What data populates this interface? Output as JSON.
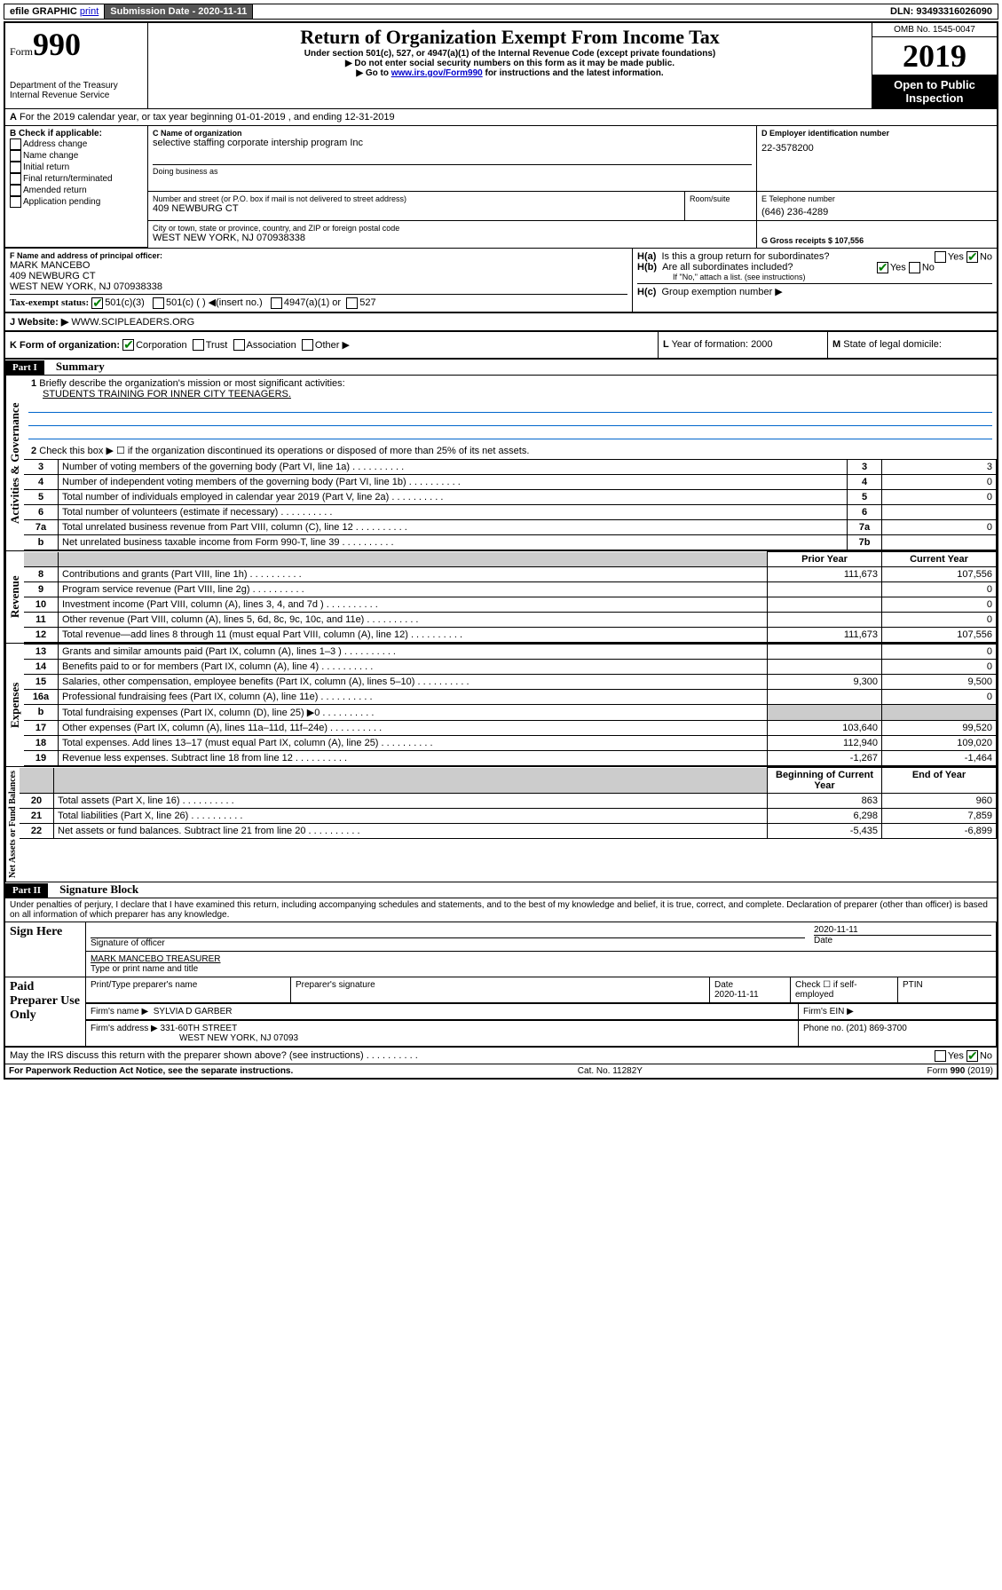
{
  "topbar": {
    "efile": "efile GRAPHIC",
    "print": "print",
    "submission_label": "Submission Date - 2020-11-11",
    "dln": "DLN: 93493316026090"
  },
  "header": {
    "form_label": "Form",
    "form_number": "990",
    "dept": "Department of the Treasury\nInternal Revenue Service",
    "title": "Return of Organization Exempt From Income Tax",
    "subtitle1": "Under section 501(c), 527, or 4947(a)(1) of the Internal Revenue Code (except private foundations)",
    "subtitle2": "▶ Do not enter social security numbers on this form as it may be made public.",
    "subtitle3_pre": "▶ Go to ",
    "subtitle3_link": "www.irs.gov/Form990",
    "subtitle3_post": " for instructions and the latest information.",
    "omb": "OMB No. 1545-0047",
    "year": "2019",
    "open_public": "Open to Public Inspection"
  },
  "sectionA": {
    "a_line": "For the 2019 calendar year, or tax year beginning 01-01-2019   , and ending 12-31-2019",
    "b_label": "B Check if applicable:",
    "b_items": [
      "Address change",
      "Name change",
      "Initial return",
      "Final return/terminated",
      "Amended return",
      "Application pending"
    ],
    "c_label": "C Name of organization",
    "c_name": "selective staffing corporate intership program Inc",
    "dba_label": "Doing business as",
    "addr_label": "Number and street (or P.O. box if mail is not delivered to street address)",
    "room_label": "Room/suite",
    "addr": "409 NEWBURG CT",
    "city_label": "City or town, state or province, country, and ZIP or foreign postal code",
    "city": "WEST NEW YORK, NJ  070938338",
    "d_label": "D Employer identification number",
    "d_ein": "22-3578200",
    "e_label": "E Telephone number",
    "e_phone": "(646) 236-4289",
    "g_label": "G Gross receipts $ 107,556",
    "f_label": "F Name and address of principal officer:",
    "f_name": "MARK MANCEBO",
    "f_addr1": "409 NEWBURG CT",
    "f_addr2": "WEST NEW YORK, NJ  070938338",
    "ha_label": "H(a)  Is this a group return for subordinates?",
    "hb_label": "H(b)  Are all subordinates included?",
    "hb_note": "If \"No,\" attach a list. (see instructions)",
    "hc_label": "H(c)  Group exemption number ▶",
    "yes": "Yes",
    "no": "No",
    "tax_exempt_label": "Tax-exempt status:",
    "te_501c3": "501(c)(3)",
    "te_501c": "501(c) (  ) ◀(insert no.)",
    "te_4947": "4947(a)(1) or",
    "te_527": "527",
    "website_label": "J    Website: ▶",
    "website": "WWW.SCIPLEADERS.ORG",
    "k_label": "K Form of organization:",
    "k_corp": "Corporation",
    "k_trust": "Trust",
    "k_assoc": "Association",
    "k_other": "Other ▶",
    "l_label": "L Year of formation: 2000",
    "m_label": "M State of legal domicile:"
  },
  "part1": {
    "header": "Part I",
    "title": "Summary",
    "q1": "Briefly describe the organization's mission or most significant activities:",
    "q1_ans": "STUDENTS TRAINING FOR INNER CITY TEENAGERS.",
    "q2": "Check this box ▶ ☐  if the organization discontinued its operations or disposed of more than 25% of its net assets.",
    "side_gov": "Activities & Governance",
    "side_rev": "Revenue",
    "side_exp": "Expenses",
    "side_net": "Net Assets or Fund Balances",
    "rows_gov": [
      {
        "num": "3",
        "label": "Number of voting members of the governing body (Part VI, line 1a)",
        "box": "3",
        "val": "3"
      },
      {
        "num": "4",
        "label": "Number of independent voting members of the governing body (Part VI, line 1b)",
        "box": "4",
        "val": "0"
      },
      {
        "num": "5",
        "label": "Total number of individuals employed in calendar year 2019 (Part V, line 2a)",
        "box": "5",
        "val": "0"
      },
      {
        "num": "6",
        "label": "Total number of volunteers (estimate if necessary)",
        "box": "6",
        "val": ""
      },
      {
        "num": "7a",
        "label": "Total unrelated business revenue from Part VIII, column (C), line 12",
        "box": "7a",
        "val": "0"
      },
      {
        "num": "b",
        "label": "Net unrelated business taxable income from Form 990-T, line 39",
        "box": "7b",
        "val": ""
      }
    ],
    "col_prior": "Prior Year",
    "col_current": "Current Year",
    "rows_rev": [
      {
        "num": "8",
        "label": "Contributions and grants (Part VIII, line 1h)",
        "prior": "111,673",
        "cur": "107,556"
      },
      {
        "num": "9",
        "label": "Program service revenue (Part VIII, line 2g)",
        "prior": "",
        "cur": "0"
      },
      {
        "num": "10",
        "label": "Investment income (Part VIII, column (A), lines 3, 4, and 7d )",
        "prior": "",
        "cur": "0"
      },
      {
        "num": "11",
        "label": "Other revenue (Part VIII, column (A), lines 5, 6d, 8c, 9c, 10c, and 11e)",
        "prior": "",
        "cur": "0"
      },
      {
        "num": "12",
        "label": "Total revenue—add lines 8 through 11 (must equal Part VIII, column (A), line 12)",
        "prior": "111,673",
        "cur": "107,556"
      }
    ],
    "rows_exp": [
      {
        "num": "13",
        "label": "Grants and similar amounts paid (Part IX, column (A), lines 1–3 )",
        "prior": "",
        "cur": "0"
      },
      {
        "num": "14",
        "label": "Benefits paid to or for members (Part IX, column (A), line 4)",
        "prior": "",
        "cur": "0"
      },
      {
        "num": "15",
        "label": "Salaries, other compensation, employee benefits (Part IX, column (A), lines 5–10)",
        "prior": "9,300",
        "cur": "9,500"
      },
      {
        "num": "16a",
        "label": "Professional fundraising fees (Part IX, column (A), line 11e)",
        "prior": "",
        "cur": "0"
      },
      {
        "num": "b",
        "label": "Total fundraising expenses (Part IX, column (D), line 25) ▶0",
        "prior": "SHADE",
        "cur": "SHADE"
      },
      {
        "num": "17",
        "label": "Other expenses (Part IX, column (A), lines 11a–11d, 11f–24e)",
        "prior": "103,640",
        "cur": "99,520"
      },
      {
        "num": "18",
        "label": "Total expenses. Add lines 13–17 (must equal Part IX, column (A), line 25)",
        "prior": "112,940",
        "cur": "109,020"
      },
      {
        "num": "19",
        "label": "Revenue less expenses. Subtract line 18 from line 12",
        "prior": "-1,267",
        "cur": "-1,464"
      }
    ],
    "col_begin": "Beginning of Current Year",
    "col_end": "End of Year",
    "rows_net": [
      {
        "num": "20",
        "label": "Total assets (Part X, line 16)",
        "prior": "863",
        "cur": "960"
      },
      {
        "num": "21",
        "label": "Total liabilities (Part X, line 26)",
        "prior": "6,298",
        "cur": "7,859"
      },
      {
        "num": "22",
        "label": "Net assets or fund balances. Subtract line 21 from line 20",
        "prior": "-5,435",
        "cur": "-6,899"
      }
    ]
  },
  "part2": {
    "header": "Part II",
    "title": "Signature Block",
    "penalty": "Under penalties of perjury, I declare that I have examined this return, including accompanying schedules and statements, and to the best of my knowledge and belief, it is true, correct, and complete. Declaration of preparer (other than officer) is based on all information of which preparer has any knowledge.",
    "sign_here": "Sign Here",
    "sig_officer": "Signature of officer",
    "sig_date": "2020-11-11",
    "date_label": "Date",
    "officer_name": "MARK MANCEBO  TREASURER",
    "type_name": "Type or print name and title",
    "paid_prep": "Paid Preparer Use Only",
    "prep_name_label": "Print/Type preparer's name",
    "prep_sig_label": "Preparer's signature",
    "prep_date_label": "Date",
    "prep_date": "2020-11-11",
    "check_self": "Check ☐ if self-employed",
    "ptin_label": "PTIN",
    "firm_name_label": "Firm's name    ▶",
    "firm_name": "SYLVIA D GARBER",
    "firm_ein_label": "Firm's EIN ▶",
    "firm_addr_label": "Firm's address ▶",
    "firm_addr1": "331-60TH STREET",
    "firm_addr2": "WEST NEW YORK, NJ  07093",
    "firm_phone_label": "Phone no. (201) 869-3700",
    "discuss": "May the IRS discuss this return with the preparer shown above? (see instructions)"
  },
  "footer": {
    "paperwork": "For Paperwork Reduction Act Notice, see the separate instructions.",
    "cat": "Cat. No. 11282Y",
    "form": "Form 990 (2019)"
  }
}
